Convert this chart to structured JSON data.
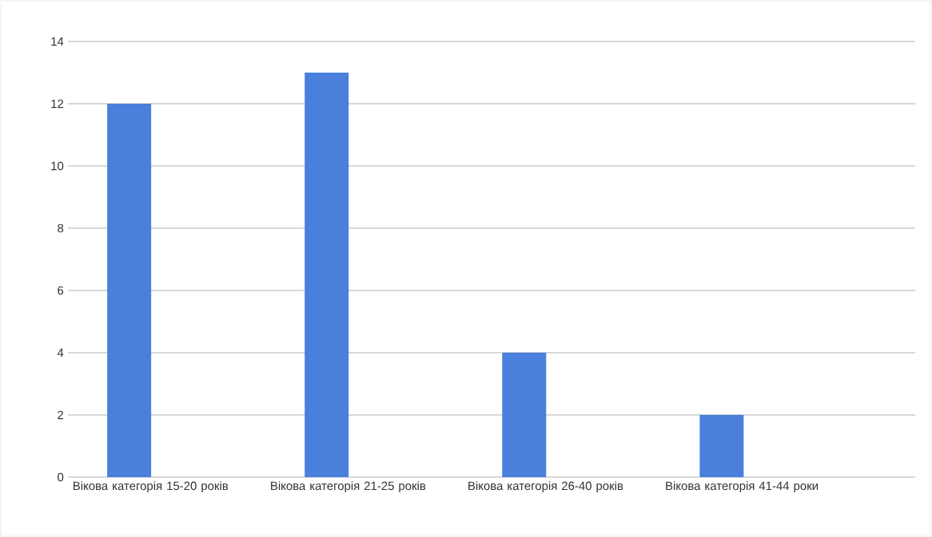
{
  "chart_data": {
    "type": "bar",
    "categories": [
      "Вікова категорія 15-20 років",
      "Вікова категорія 21-25 років",
      "Вікова категорія 26-40 років",
      "Вікова категорія 41-44 роки"
    ],
    "values": [
      12,
      13,
      4,
      2
    ],
    "color": "#4a7fdc",
    "ylim": [
      0,
      14
    ],
    "yticks": [
      0,
      2,
      4,
      6,
      8,
      10,
      12,
      14
    ],
    "grid": "y"
  }
}
